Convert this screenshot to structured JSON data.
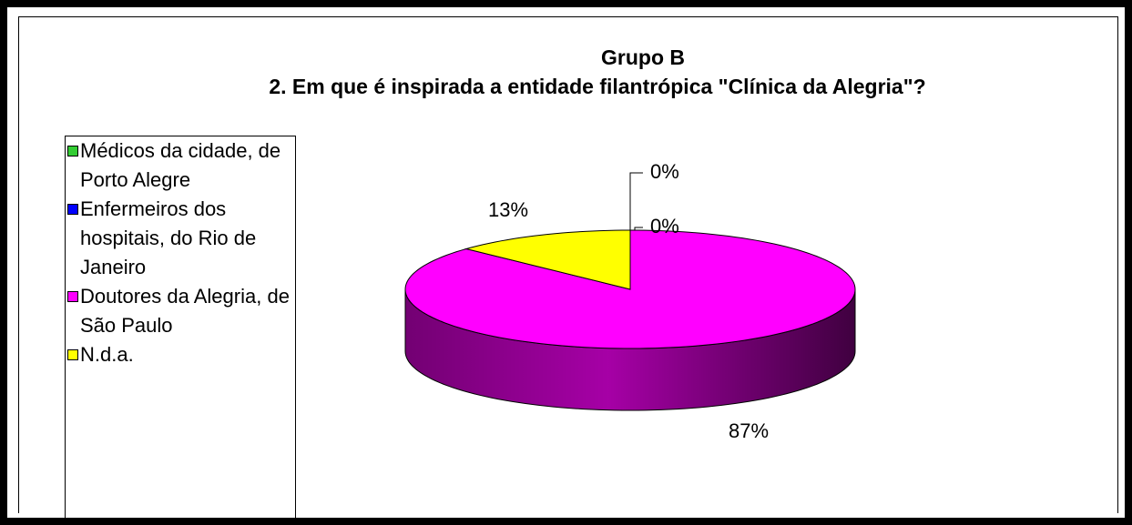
{
  "chart_data": {
    "type": "pie",
    "title": "Grupo B",
    "subtitle": "2. Em que é inspirada a entidade filantrópica \"Clínica da Alegria\"?",
    "categories": [
      "Médicos da cidade, de Porto Alegre",
      "Enfermeiros dos hospitais, do Rio de Janeiro",
      "Doutores da Alegria, de São Paulo",
      "N.d.a."
    ],
    "values": [
      0,
      0,
      87,
      13
    ],
    "value_labels": [
      "0%",
      "0%",
      "87%",
      "13%"
    ],
    "colors": [
      "#33cc33",
      "#0000ff",
      "#ff00ff",
      "#ffff00"
    ],
    "legend": "left"
  }
}
